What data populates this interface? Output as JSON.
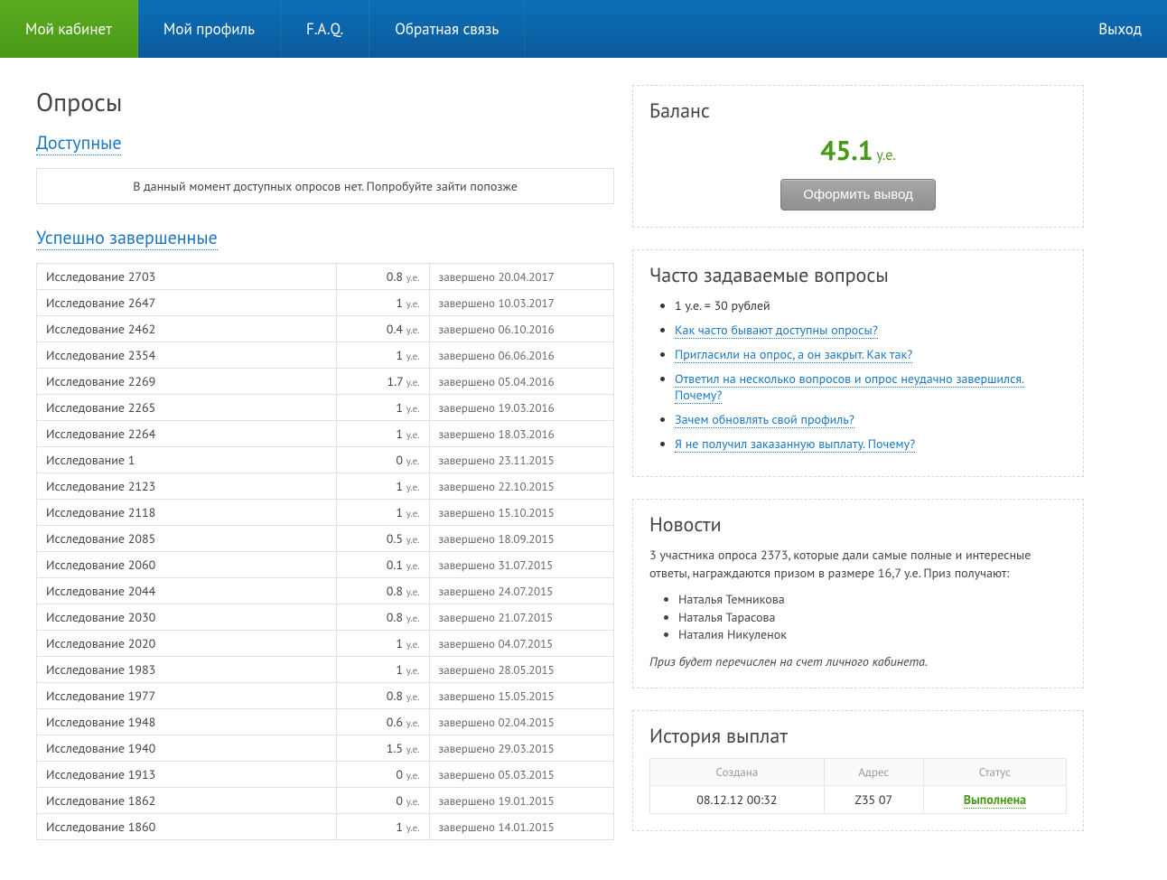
{
  "nav": {
    "items": [
      {
        "label": "Мой кабинет",
        "active": true
      },
      {
        "label": "Мой профиль",
        "active": false
      },
      {
        "label": "F.A.Q.",
        "active": false
      },
      {
        "label": "Обратная связь",
        "active": false
      }
    ],
    "logout": "Выход"
  },
  "colors": {
    "nav_gradient_top": "#0d6fb8",
    "nav_gradient_bottom": "#0a5a9a",
    "nav_active_top": "#5aab1f",
    "nav_active_bottom": "#4a9818",
    "link": "#1a77c0",
    "accent_green": "#4a9818",
    "border": "#e0e0e0"
  },
  "surveys": {
    "title": "Опросы",
    "available_heading": "Доступные",
    "available_empty": "В данный момент доступных опросов нет. Попробуйте зайти попозже",
    "completed_heading": "Успешно завершенные",
    "unit_label": "у.е.",
    "status_prefix": "завершено",
    "rows": [
      {
        "name": "Исследование 2703",
        "amount": "0.8",
        "date": "20.04.2017"
      },
      {
        "name": "Исследование 2647",
        "amount": "1",
        "date": "10.03.2017"
      },
      {
        "name": "Исследование 2462",
        "amount": "0.4",
        "date": "06.10.2016"
      },
      {
        "name": "Исследование 2354",
        "amount": "1",
        "date": "06.06.2016"
      },
      {
        "name": "Исследование 2269",
        "amount": "1.7",
        "date": "05.04.2016"
      },
      {
        "name": "Исследование 2265",
        "amount": "1",
        "date": "19.03.2016"
      },
      {
        "name": "Исследование 2264",
        "amount": "1",
        "date": "18.03.2016"
      },
      {
        "name": "Исследование 1",
        "amount": "0",
        "date": "23.11.2015"
      },
      {
        "name": "Исследование 2123",
        "amount": "1",
        "date": "22.10.2015"
      },
      {
        "name": "Исследование 2118",
        "amount": "1",
        "date": "15.10.2015"
      },
      {
        "name": "Исследование 2085",
        "amount": "0.5",
        "date": "18.09.2015"
      },
      {
        "name": "Исследование 2060",
        "amount": "0.1",
        "date": "31.07.2015"
      },
      {
        "name": "Исследование 2044",
        "amount": "0.8",
        "date": "24.07.2015"
      },
      {
        "name": "Исследование 2030",
        "amount": "0.8",
        "date": "21.07.2015"
      },
      {
        "name": "Исследование 2020",
        "amount": "1",
        "date": "04.07.2015"
      },
      {
        "name": "Исследование 1983",
        "amount": "1",
        "date": "28.05.2015"
      },
      {
        "name": "Исследование 1977",
        "amount": "0.8",
        "date": "15.05.2015"
      },
      {
        "name": "Исследование 1948",
        "amount": "0.6",
        "date": "02.04.2015"
      },
      {
        "name": "Исследование 1940",
        "amount": "1.5",
        "date": "29.03.2015"
      },
      {
        "name": "Исследование 1913",
        "amount": "0",
        "date": "05.03.2015"
      },
      {
        "name": "Исследование 1862",
        "amount": "0",
        "date": "19.01.2015"
      },
      {
        "name": "Исследование 1860",
        "amount": "1",
        "date": "14.01.2015"
      }
    ]
  },
  "balance": {
    "title": "Баланс",
    "value": "45.1",
    "unit": "у.е.",
    "withdraw_label": "Оформить вывод"
  },
  "faq": {
    "title": "Часто задаваемые вопросы",
    "plain_item": "1 у.е. = 30 рублей",
    "links": [
      "Как часто бывают доступны опросы?",
      "Пригласили на опрос, а он закрыт. Как так?",
      "Ответил на несколько вопросов и опрос неудачно завершился. Почему?",
      "Зачем обновлять свой профиль?",
      "Я не получил заказанную выплату. Почему?"
    ]
  },
  "news": {
    "title": "Новости",
    "intro": "3 участника опроса 2373, которые дали самые полные и интересные ответы, награждаются призом в размере 16,7 у.е. Приз получают:",
    "winners": [
      "Наталья Темникова",
      "Наталья Тарасова",
      "Наталия Никуленок"
    ],
    "footnote": "Приз будет перечислен на счет личного кабинета."
  },
  "payouts": {
    "title": "История выплат",
    "columns": [
      "Создана",
      "Адрес",
      "Статус"
    ],
    "rows": [
      {
        "created": "08.12.12 00:32",
        "address": "Z35          07",
        "status": "Выполнена"
      }
    ]
  }
}
